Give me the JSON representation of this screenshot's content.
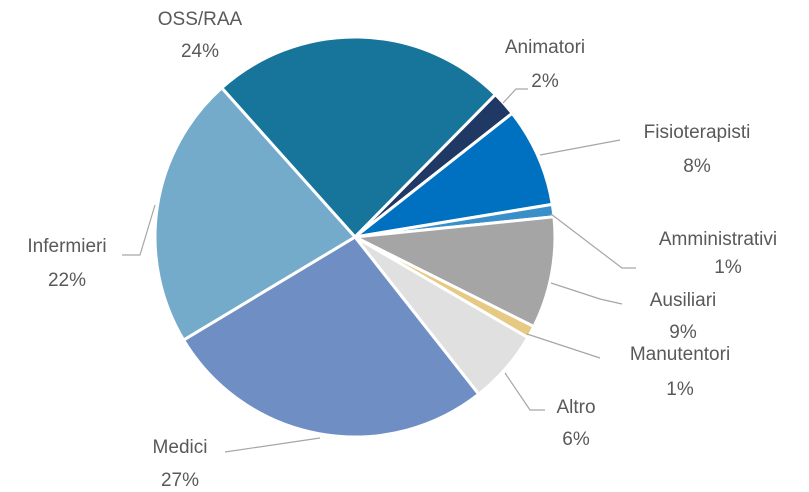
{
  "chart_data": {
    "type": "pie",
    "categories": [
      "OSS/RAA",
      "Animatori",
      "Fisioterapisti",
      "Amministrativi",
      "Ausiliari",
      "Manutentori",
      "Altro",
      "Medici",
      "Infermieri"
    ],
    "values": [
      24,
      2,
      8,
      1,
      9,
      1,
      6,
      27,
      22
    ],
    "value_labels": [
      "24%",
      "2%",
      "8%",
      "1%",
      "9%",
      "1%",
      "6%",
      "27%",
      "22%"
    ],
    "colors": [
      "#17759b",
      "#1f3864",
      "#0070c0",
      "#3a8fc8",
      "#a5a5a5",
      "#e6c982",
      "#e0e0e0",
      "#6f8fc4",
      "#74abcb"
    ]
  }
}
